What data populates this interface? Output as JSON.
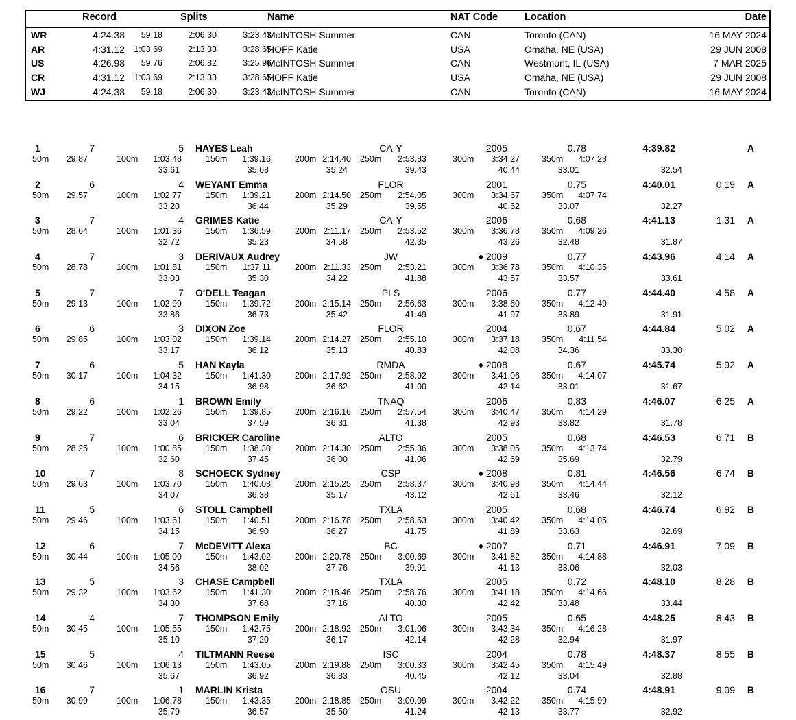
{
  "split_labels": [
    "50m",
    "100m",
    "150m",
    "200m",
    "250m",
    "300m",
    "350m"
  ],
  "records": {
    "headers": {
      "record": "Record",
      "splits": "Splits",
      "name": "Name",
      "nat": "NAT Code",
      "location": "Location",
      "date": "Date"
    },
    "rows": [
      {
        "code": "WR",
        "time": "4:24.38",
        "s1": "59.18",
        "s2": "2:06.30",
        "s3": "3:23.43",
        "name": "McINTOSH Summer",
        "nat": "CAN",
        "location": "Toronto (CAN)",
        "date": "16 MAY 2024"
      },
      {
        "code": "AR",
        "time": "4:31.12",
        "s1": "1:03.69",
        "s2": "2:13.33",
        "s3": "3:28.65",
        "name": "HOFF Katie",
        "nat": "USA",
        "location": "Omaha, NE (USA)",
        "date": "29 JUN 2008"
      },
      {
        "code": "US",
        "time": "4:26.98",
        "s1": "59.76",
        "s2": "2:06.82",
        "s3": "3:25.96",
        "name": "McINTOSH Summer",
        "nat": "CAN",
        "location": "Westmont, IL (USA)",
        "date": "7 MAR 2025"
      },
      {
        "code": "CR",
        "time": "4:31.12",
        "s1": "1:03.69",
        "s2": "2:13.33",
        "s3": "3:28.65",
        "name": "HOFF Katie",
        "nat": "USA",
        "location": "Omaha, NE (USA)",
        "date": "29 JUN 2008"
      },
      {
        "code": "WJ",
        "time": "4:24.38",
        "s1": "59.18",
        "s2": "2:06.30",
        "s3": "3:23.43",
        "name": "McINTOSH Summer",
        "nat": "CAN",
        "location": "Toronto (CAN)",
        "date": "16 MAY 2024"
      }
    ]
  },
  "results": [
    {
      "rank": "1",
      "heat": "7",
      "lane": "5",
      "name": "HAYES Leah",
      "club": "CA-Y",
      "year": "2005",
      "reaction": "0.78",
      "final": "4:39.82",
      "gap": "",
      "grade": "A",
      "c50": "29.87",
      "c100": "1:03.48",
      "d100": "33.61",
      "c150": "1:39.16",
      "d150": "35.68",
      "c200": "2:14.40",
      "d200": "35.24",
      "c250": "2:53.83",
      "d250": "39.43",
      "c300": "3:34.27",
      "d300": "40.44",
      "c350": "4:07.28",
      "d350": "33.01",
      "dlast": "32.54"
    },
    {
      "rank": "2",
      "heat": "6",
      "lane": "4",
      "name": "WEYANT Emma",
      "club": "FLOR",
      "year": "2001",
      "reaction": "0.75",
      "final": "4:40.01",
      "gap": "0.19",
      "grade": "A",
      "c50": "29.57",
      "c100": "1:02.77",
      "d100": "33.20",
      "c150": "1:39.21",
      "d150": "36.44",
      "c200": "2:14.50",
      "d200": "35.29",
      "c250": "2:54.05",
      "d250": "39.55",
      "c300": "3:34.67",
      "d300": "40.62",
      "c350": "4:07.74",
      "d350": "33.07",
      "dlast": "32.27"
    },
    {
      "rank": "3",
      "heat": "7",
      "lane": "4",
      "name": "GRIMES Katie",
      "club": "CA-Y",
      "year": "2006",
      "reaction": "0.68",
      "final": "4:41.13",
      "gap": "1.31",
      "grade": "A",
      "c50": "28.64",
      "c100": "1:01.36",
      "d100": "32.72",
      "c150": "1:36.59",
      "d150": "35.23",
      "c200": "2:11.17",
      "d200": "34.58",
      "c250": "2:53.52",
      "d250": "42.35",
      "c300": "3:36.78",
      "d300": "43.26",
      "c350": "4:09.26",
      "d350": "32.48",
      "dlast": "31.87"
    },
    {
      "rank": "4",
      "heat": "7",
      "lane": "3",
      "name": "DERIVAUX Audrey",
      "club": "JW",
      "year": "♦ 2009",
      "reaction": "0.77",
      "final": "4:43.96",
      "gap": "4.14",
      "grade": "A",
      "c50": "28.78",
      "c100": "1:01.81",
      "d100": "33.03",
      "c150": "1:37.11",
      "d150": "35.30",
      "c200": "2:11.33",
      "d200": "34.22",
      "c250": "2:53.21",
      "d250": "41.88",
      "c300": "3:36.78",
      "d300": "43.57",
      "c350": "4:10.35",
      "d350": "33.57",
      "dlast": "33.61"
    },
    {
      "rank": "5",
      "heat": "7",
      "lane": "7",
      "name": "O'DELL Teagan",
      "club": "PLS",
      "year": "2006",
      "reaction": "0.77",
      "final": "4:44.40",
      "gap": "4.58",
      "grade": "A",
      "c50": "29.13",
      "c100": "1:02.99",
      "d100": "33.86",
      "c150": "1:39.72",
      "d150": "36.73",
      "c200": "2:15.14",
      "d200": "35.42",
      "c250": "2:56.63",
      "d250": "41.49",
      "c300": "3:38.60",
      "d300": "41.97",
      "c350": "4:12.49",
      "d350": "33.89",
      "dlast": "31.91"
    },
    {
      "rank": "6",
      "heat": "6",
      "lane": "3",
      "name": "DIXON Zoe",
      "club": "FLOR",
      "year": "2004",
      "reaction": "0.67",
      "final": "4:44.84",
      "gap": "5.02",
      "grade": "A",
      "c50": "29.85",
      "c100": "1:03.02",
      "d100": "33.17",
      "c150": "1:39.14",
      "d150": "36.12",
      "c200": "2:14.27",
      "d200": "35.13",
      "c250": "2:55.10",
      "d250": "40.83",
      "c300": "3:37.18",
      "d300": "42.08",
      "c350": "4:11.54",
      "d350": "34.36",
      "dlast": "33.30"
    },
    {
      "rank": "7",
      "heat": "6",
      "lane": "5",
      "name": "HAN Kayla",
      "club": "RMDA",
      "year": "♦ 2008",
      "reaction": "0.67",
      "final": "4:45.74",
      "gap": "5.92",
      "grade": "A",
      "c50": "30.17",
      "c100": "1:04.32",
      "d100": "34.15",
      "c150": "1:41.30",
      "d150": "36.98",
      "c200": "2:17.92",
      "d200": "36.62",
      "c250": "2:58.92",
      "d250": "41.00",
      "c300": "3:41.06",
      "d300": "42.14",
      "c350": "4:14.07",
      "d350": "33.01",
      "dlast": "31.67"
    },
    {
      "rank": "8",
      "heat": "6",
      "lane": "1",
      "name": "BROWN Emily",
      "club": "TNAQ",
      "year": "2006",
      "reaction": "0.83",
      "final": "4:46.07",
      "gap": "6.25",
      "grade": "A",
      "c50": "29.22",
      "c100": "1:02.26",
      "d100": "33.04",
      "c150": "1:39.85",
      "d150": "37.59",
      "c200": "2:16.16",
      "d200": "36.31",
      "c250": "2:57.54",
      "d250": "41.38",
      "c300": "3:40.47",
      "d300": "42.93",
      "c350": "4:14.29",
      "d350": "33.82",
      "dlast": "31.78"
    },
    {
      "rank": "9",
      "heat": "7",
      "lane": "6",
      "name": "BRICKER Caroline",
      "club": "ALTO",
      "year": "2005",
      "reaction": "0.68",
      "final": "4:46.53",
      "gap": "6.71",
      "grade": "B",
      "c50": "28.25",
      "c100": "1:00.85",
      "d100": "32.60",
      "c150": "1:38.30",
      "d150": "37.45",
      "c200": "2:14.30",
      "d200": "36.00",
      "c250": "2:55.36",
      "d250": "41.06",
      "c300": "3:38.05",
      "d300": "42.69",
      "c350": "4:13.74",
      "d350": "35.69",
      "dlast": "32.79"
    },
    {
      "rank": "10",
      "heat": "7",
      "lane": "8",
      "name": "SCHOECK Sydney",
      "club": "CSP",
      "year": "♦ 2008",
      "reaction": "0.81",
      "final": "4:46.56",
      "gap": "6.74",
      "grade": "B",
      "c50": "29.63",
      "c100": "1:03.70",
      "d100": "34.07",
      "c150": "1:40.08",
      "d150": "36.38",
      "c200": "2:15.25",
      "d200": "35.17",
      "c250": "2:58.37",
      "d250": "43.12",
      "c300": "3:40.98",
      "d300": "42.61",
      "c350": "4:14.44",
      "d350": "33.46",
      "dlast": "32.12"
    },
    {
      "rank": "11",
      "heat": "5",
      "lane": "6",
      "name": "STOLL Campbell",
      "club": "TXLA",
      "year": "2005",
      "reaction": "0.68",
      "final": "4:46.74",
      "gap": "6.92",
      "grade": "B",
      "c50": "29.46",
      "c100": "1:03.61",
      "d100": "34.15",
      "c150": "1:40.51",
      "d150": "36.90",
      "c200": "2:16.78",
      "d200": "36.27",
      "c250": "2:58.53",
      "d250": "41.75",
      "c300": "3:40.42",
      "d300": "41.89",
      "c350": "4:14.05",
      "d350": "33.63",
      "dlast": "32.69"
    },
    {
      "rank": "12",
      "heat": "6",
      "lane": "7",
      "name": "McDEVITT Alexa",
      "club": "BC",
      "year": "♦ 2007",
      "reaction": "0.71",
      "final": "4:46.91",
      "gap": "7.09",
      "grade": "B",
      "c50": "30.44",
      "c100": "1:05.00",
      "d100": "34.56",
      "c150": "1:43.02",
      "d150": "38.02",
      "c200": "2:20.78",
      "d200": "37.76",
      "c250": "3:00.69",
      "d250": "39.91",
      "c300": "3:41.82",
      "d300": "41.13",
      "c350": "4:14.88",
      "d350": "33.06",
      "dlast": "32.03"
    },
    {
      "rank": "13",
      "heat": "5",
      "lane": "3",
      "name": "CHASE Campbell",
      "club": "TXLA",
      "year": "2005",
      "reaction": "0.72",
      "final": "4:48.10",
      "gap": "8.28",
      "grade": "B",
      "c50": "29.32",
      "c100": "1:03.62",
      "d100": "34.30",
      "c150": "1:41.30",
      "d150": "37.68",
      "c200": "2:18.46",
      "d200": "37.16",
      "c250": "2:58.76",
      "d250": "40.30",
      "c300": "3:41.18",
      "d300": "42.42",
      "c350": "4:14.66",
      "d350": "33.48",
      "dlast": "33.44"
    },
    {
      "rank": "14",
      "heat": "4",
      "lane": "7",
      "name": "THOMPSON Emily",
      "club": "ALTO",
      "year": "2005",
      "reaction": "0.65",
      "final": "4:48.25",
      "gap": "8.43",
      "grade": "B",
      "c50": "30.45",
      "c100": "1:05.55",
      "d100": "35.10",
      "c150": "1:42.75",
      "d150": "37.20",
      "c200": "2:18.92",
      "d200": "36.17",
      "c250": "3:01.06",
      "d250": "42.14",
      "c300": "3:43.34",
      "d300": "42.28",
      "c350": "4:16.28",
      "d350": "32.94",
      "dlast": "31.97"
    },
    {
      "rank": "15",
      "heat": "5",
      "lane": "4",
      "name": "TILTMANN Reese",
      "club": "ISC",
      "year": "2004",
      "reaction": "0.78",
      "final": "4:48.37",
      "gap": "8.55",
      "grade": "B",
      "c50": "30.46",
      "c100": "1:06.13",
      "d100": "35.67",
      "c150": "1:43.05",
      "d150": "36.92",
      "c200": "2:19.88",
      "d200": "36.83",
      "c250": "3:00.33",
      "d250": "40.45",
      "c300": "3:42.45",
      "d300": "42.12",
      "c350": "4:15.49",
      "d350": "33.04",
      "dlast": "32.88"
    },
    {
      "rank": "16",
      "heat": "7",
      "lane": "1",
      "name": "MARLIN Krista",
      "club": "OSU",
      "year": "2004",
      "reaction": "0.74",
      "final": "4:48.91",
      "gap": "9.09",
      "grade": "B",
      "c50": "30.99",
      "c100": "1:06.78",
      "d100": "35.79",
      "c150": "1:43.35",
      "d150": "36.57",
      "c200": "2:18.85",
      "d200": "35.50",
      "c250": "3:00.09",
      "d250": "41.24",
      "c300": "3:42.22",
      "d300": "42.13",
      "c350": "4:15.99",
      "d350": "33.77",
      "dlast": "32.92"
    }
  ]
}
